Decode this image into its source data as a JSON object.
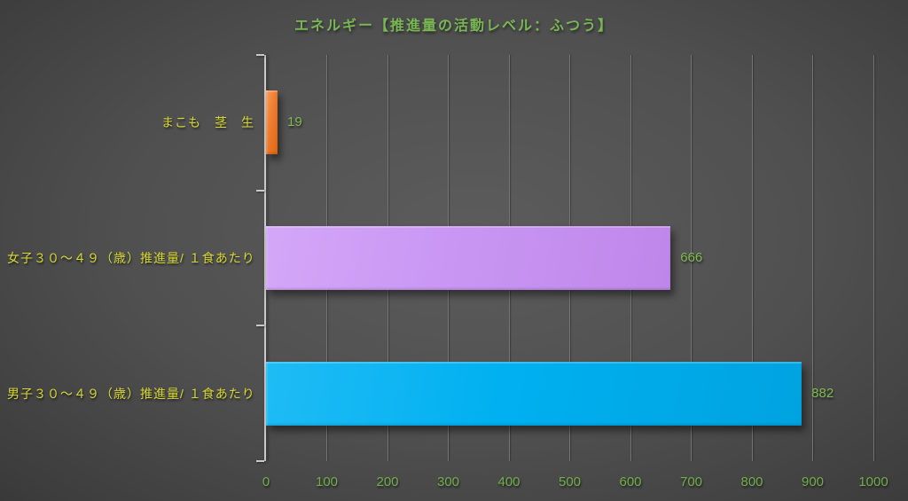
{
  "chart_data": {
    "type": "bar",
    "orientation": "horizontal",
    "title": "エネルギー【推進量の活動レベル：ふつう】",
    "categories": [
      "まこも　茎　生",
      "女子３０～４９（歳）推進量/ １食あたり",
      "男子３０～４９（歳）推進量/ １食あたり"
    ],
    "values": [
      19,
      666,
      882
    ],
    "value_labels": [
      "19",
      "666",
      "882"
    ],
    "xlim": [
      0,
      1000
    ],
    "xticks": [
      0,
      100,
      200,
      300,
      400,
      500,
      600,
      700,
      800,
      900,
      1000
    ],
    "grid": true,
    "legend": "none",
    "xlabel": "",
    "ylabel": "",
    "bars": [
      {
        "name": "makomo-stem-raw",
        "color": "#ed7d31",
        "light": "#f79d5b",
        "dark": "#e3650e"
      },
      {
        "name": "female-30-49-per-meal",
        "color": "#c997f3",
        "light": "#d4a7f8",
        "dark": "#bf86ea"
      },
      {
        "name": "male-30-49-per-meal",
        "color": "#00b0f0",
        "light": "#1fbcf5",
        "dark": "#00a3e0"
      }
    ],
    "colors": {
      "title": "#79b754",
      "category_label": "#d6d632",
      "value_label": "#7eb94f",
      "tick_label": "#6fae49",
      "gridline": "#757575",
      "axis_line": "#c9c9c9",
      "background_center": "#5c5c5c",
      "background_edge": "#262626"
    }
  }
}
